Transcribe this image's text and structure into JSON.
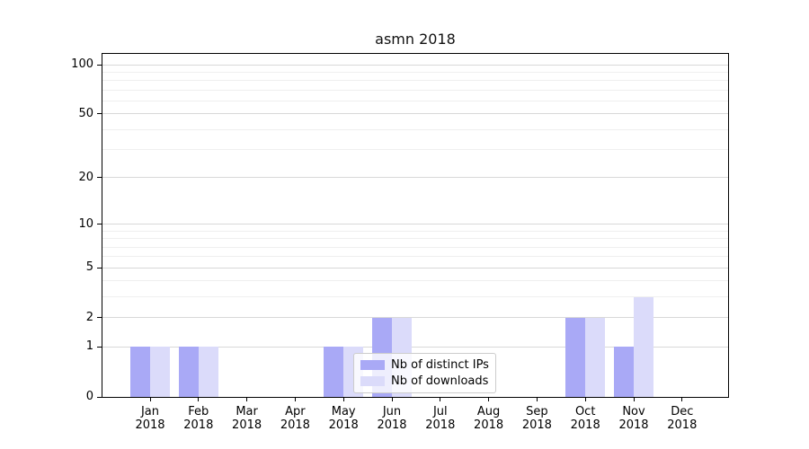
{
  "title": "asmn 2018",
  "chart_data": {
    "type": "bar",
    "title": "asmn 2018",
    "x": {
      "months": [
        "Jan",
        "Feb",
        "Mar",
        "Apr",
        "May",
        "Jun",
        "Jul",
        "Aug",
        "Sep",
        "Oct",
        "Nov",
        "Dec"
      ],
      "year": "2018"
    },
    "series": [
      {
        "name": "Nb of distinct IPs",
        "key": "distinct-ips",
        "color": "#a9a9f6",
        "values": [
          1,
          1,
          0,
          0,
          1,
          2,
          0,
          0,
          0,
          2,
          1,
          0
        ]
      },
      {
        "name": "Nb of downloads",
        "key": "downloads",
        "color": "#dbdbfa",
        "values": [
          1,
          1,
          0,
          0,
          1,
          2,
          0,
          0,
          0,
          2,
          3,
          0
        ]
      }
    ],
    "y_axis": {
      "scale": "log1p",
      "ylim": [
        0,
        113
      ],
      "major_ticks": [
        100,
        50,
        20,
        10,
        5,
        2,
        1,
        0
      ],
      "minor_ticks": [
        3,
        4,
        6,
        7,
        8,
        9,
        30,
        40,
        60,
        70,
        80,
        90
      ]
    },
    "legend": {
      "position": "lower-center"
    },
    "grid": true
  },
  "colors": {
    "bar_distinct_ips": "#a9a9f6",
    "bar_downloads": "#dbdbfa",
    "grid_major": "#d8d8d8",
    "grid_minor": "#efefef",
    "axis": "#000000",
    "legend_border": "#cccccc"
  }
}
